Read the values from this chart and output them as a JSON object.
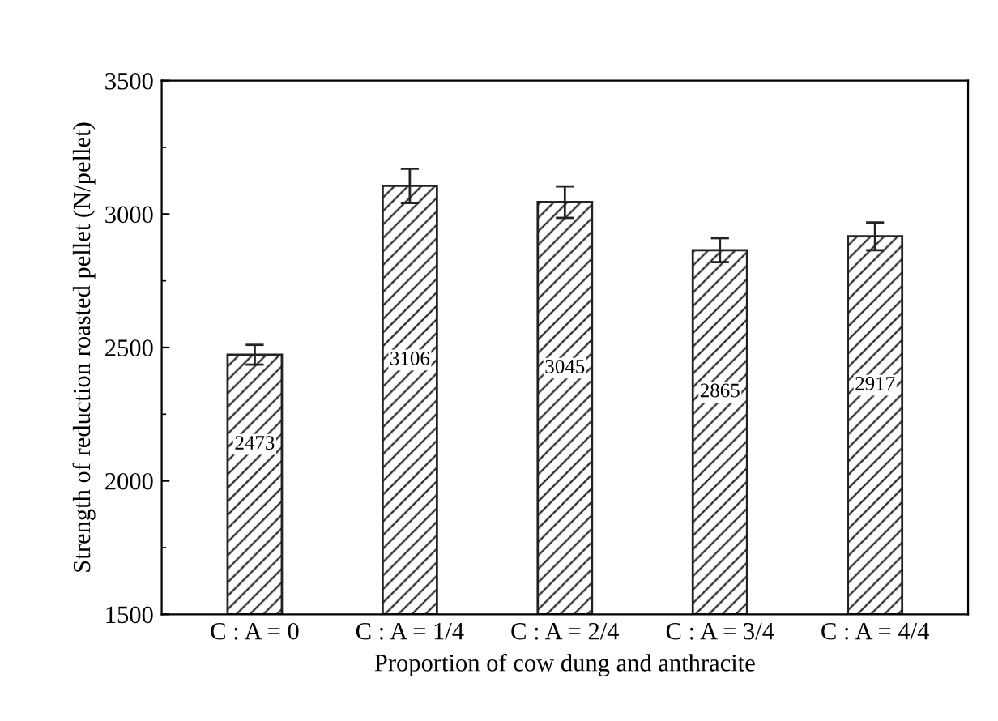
{
  "chart_data": {
    "type": "bar",
    "xlabel": "Proportion of cow dung and anthracite",
    "ylabel": "Strength of reduction roasted pellet (N/pellet)",
    "categories": [
      "C : A = 0",
      "C : A = 1/4",
      "C : A = 2/4",
      "C : A = 3/4",
      "C : A = 4/4"
    ],
    "values": [
      2473,
      3106,
      3045,
      2865,
      2917
    ],
    "errors": [
      37,
      64,
      59,
      45,
      52
    ],
    "color": "#222222",
    "ylim": [
      1500,
      3500
    ],
    "yticks": [
      1500,
      2000,
      2500,
      3000,
      3500
    ],
    "data_labels": true,
    "grid": false,
    "legend": false
  }
}
